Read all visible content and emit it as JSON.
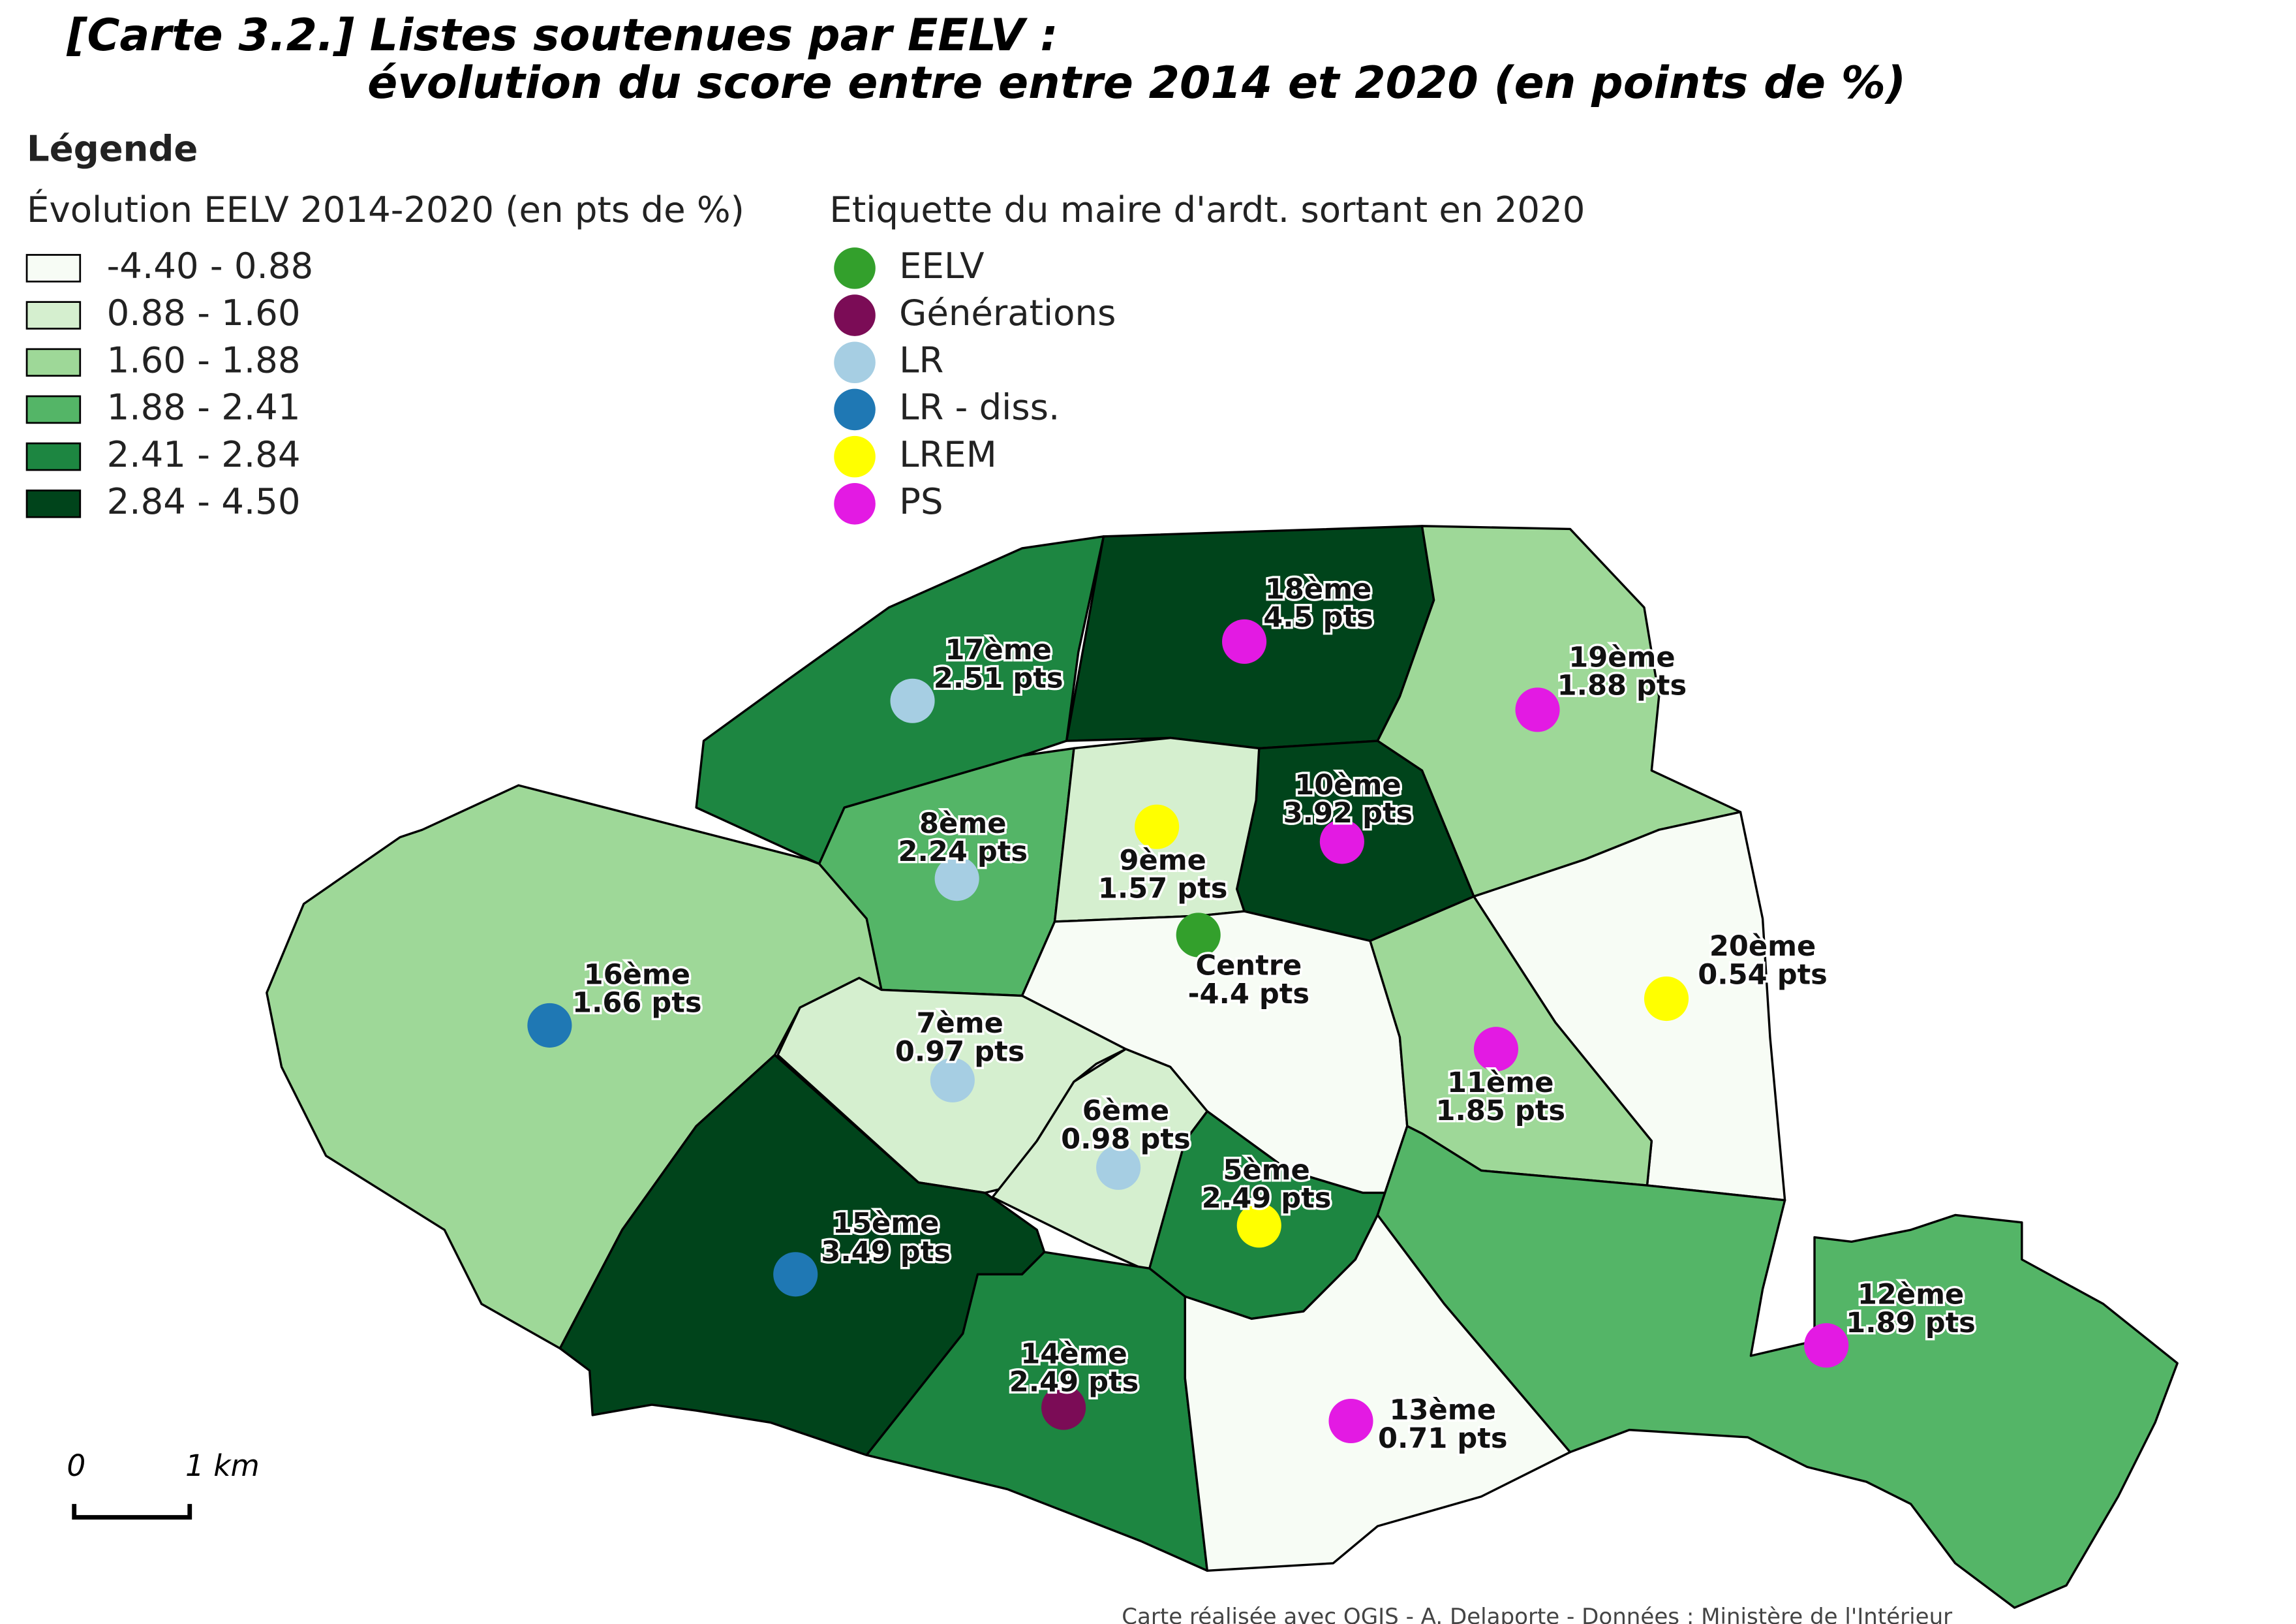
{
  "title": [
    "[Carte 3.2.] Listes soutenues par EELV :",
    "évolution du score entre entre 2014 et 2020 (en points de %)"
  ],
  "legend": {
    "heading": "Légende",
    "classes_title": "Évolution EELV 2014-2020 (en pts de %)",
    "classes": [
      "-4.40 - 0.88",
      "0.88 - 1.60",
      "1.60 - 1.88",
      "1.88 - 2.41",
      "2.41 - 2.84",
      "2.84 - 4.50"
    ],
    "parties_title": "Etiquette du maire d'ardt. sortant en 2020",
    "parties": [
      "EELV",
      "Générations",
      "LR",
      "LR - diss.",
      "LREM",
      "PS"
    ]
  },
  "districts": [
    {
      "name": "18ème",
      "label": "4.5 pts"
    },
    {
      "name": "17ème",
      "label": "2.51 pts"
    },
    {
      "name": "19ème",
      "label": "1.88 pts"
    },
    {
      "name": "10ème",
      "label": "3.92 pts"
    },
    {
      "name": "8ème",
      "label": "2.24 pts"
    },
    {
      "name": "9ème",
      "label": "1.57 pts"
    },
    {
      "name": "Centre",
      "label": "-4.4 pts"
    },
    {
      "name": "16ème",
      "label": "1.66 pts"
    },
    {
      "name": "20ème",
      "label": "0.54 pts"
    },
    {
      "name": "7ème",
      "label": "0.97 pts"
    },
    {
      "name": "11ème",
      "label": "1.85 pts"
    },
    {
      "name": "6ème",
      "label": "0.98 pts"
    },
    {
      "name": "5ème",
      "label": "2.49 pts"
    },
    {
      "name": "15ème",
      "label": "3.49 pts"
    },
    {
      "name": "12ème",
      "label": "1.89 pts"
    },
    {
      "name": "14ème",
      "label": "2.49 pts"
    },
    {
      "name": "13ème",
      "label": "0.71 pts"
    }
  ],
  "scale": [
    "0",
    "1 km"
  ],
  "credit": "Carte réalisée avec QGIS - A. Delaporte - Données : Ministère de l'Intérieur"
}
